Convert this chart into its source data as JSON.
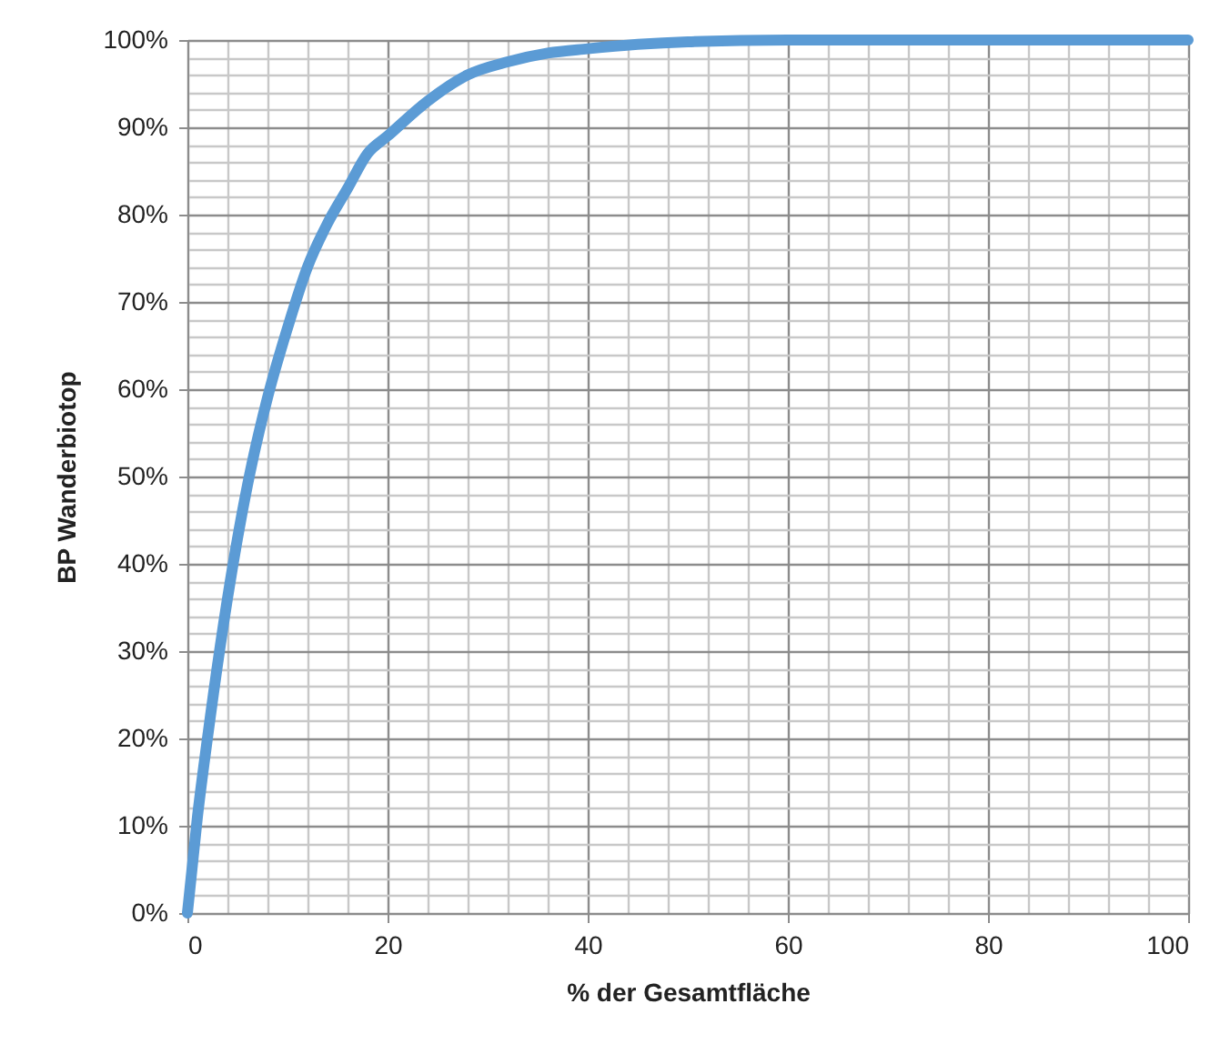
{
  "chart_data": {
    "type": "line",
    "xlabel": "% der Gesamtfläche",
    "ylabel": "BP Wanderbiotop",
    "x": [
      0,
      1,
      2,
      4,
      6,
      8,
      10,
      12,
      14,
      16,
      18,
      20,
      24,
      28,
      32,
      36,
      40,
      45,
      50,
      60,
      80,
      100
    ],
    "series": [
      {
        "color": "#5b9bd5",
        "values": [
          0,
          11,
          20,
          36,
          49,
          59,
          67,
          74,
          79,
          83,
          87,
          89,
          93,
          96,
          97.5,
          98.5,
          99,
          99.5,
          99.8,
          100,
          100,
          100
        ]
      }
    ],
    "xlim": [
      0,
      100
    ],
    "ylim": [
      0,
      100
    ],
    "xticks": [
      0,
      {
        "value": 4,
        "label": null
      },
      {
        "value": 8,
        "label": null
      },
      {
        "value": 12,
        "label": null
      },
      {
        "value": 16,
        "label": null
      },
      20,
      {
        "value": 24,
        "label": null
      },
      {
        "value": 28,
        "label": null
      },
      {
        "value": 32,
        "label": null
      },
      {
        "value": 36,
        "label": null
      },
      40,
      {
        "value": 44,
        "label": null
      },
      {
        "value": 48,
        "label": null
      },
      {
        "value": 52,
        "label": null
      },
      {
        "value": 56,
        "label": null
      },
      60,
      {
        "value": 64,
        "label": null
      },
      {
        "value": 68,
        "label": null
      },
      {
        "value": 72,
        "label": null
      },
      {
        "value": 76,
        "label": null
      },
      80,
      {
        "value": 84,
        "label": null
      },
      {
        "value": 88,
        "label": null
      },
      {
        "value": 92,
        "label": null
      },
      {
        "value": 96,
        "label": null
      },
      100
    ],
    "yticks": [
      {
        "value": 0,
        "label": "0%"
      },
      {
        "value": 2,
        "label": null
      },
      {
        "value": 4,
        "label": null
      },
      {
        "value": 6,
        "label": null
      },
      {
        "value": 8,
        "label": null
      },
      {
        "value": 10,
        "label": "10%"
      },
      {
        "value": 12,
        "label": null
      },
      {
        "value": 14,
        "label": null
      },
      {
        "value": 16,
        "label": null
      },
      {
        "value": 18,
        "label": null
      },
      {
        "value": 20,
        "label": "20%"
      },
      {
        "value": 22,
        "label": null
      },
      {
        "value": 24,
        "label": null
      },
      {
        "value": 26,
        "label": null
      },
      {
        "value": 28,
        "label": null
      },
      {
        "value": 30,
        "label": "30%"
      },
      {
        "value": 32,
        "label": null
      },
      {
        "value": 34,
        "label": null
      },
      {
        "value": 36,
        "label": null
      },
      {
        "value": 38,
        "label": null
      },
      {
        "value": 40,
        "label": "40%"
      },
      {
        "value": 42,
        "label": null
      },
      {
        "value": 44,
        "label": null
      },
      {
        "value": 46,
        "label": null
      },
      {
        "value": 48,
        "label": null
      },
      {
        "value": 50,
        "label": "50%"
      },
      {
        "value": 52,
        "label": null
      },
      {
        "value": 54,
        "label": null
      },
      {
        "value": 56,
        "label": null
      },
      {
        "value": 58,
        "label": null
      },
      {
        "value": 60,
        "label": "60%"
      },
      {
        "value": 62,
        "label": null
      },
      {
        "value": 64,
        "label": null
      },
      {
        "value": 66,
        "label": null
      },
      {
        "value": 68,
        "label": null
      },
      {
        "value": 70,
        "label": "70%"
      },
      {
        "value": 72,
        "label": null
      },
      {
        "value": 74,
        "label": null
      },
      {
        "value": 76,
        "label": null
      },
      {
        "value": 78,
        "label": null
      },
      {
        "value": 80,
        "label": "80%"
      },
      {
        "value": 82,
        "label": null
      },
      {
        "value": 84,
        "label": null
      },
      {
        "value": 86,
        "label": null
      },
      {
        "value": 88,
        "label": null
      },
      {
        "value": 90,
        "label": "90%"
      },
      {
        "value": 92,
        "label": null
      },
      {
        "value": 94,
        "label": null
      },
      {
        "value": 96,
        "label": null
      },
      {
        "value": 98,
        "label": null
      },
      {
        "value": 100,
        "label": "100%"
      }
    ],
    "grid": true,
    "legend": false,
    "marker": "none",
    "line_style": "solid"
  }
}
